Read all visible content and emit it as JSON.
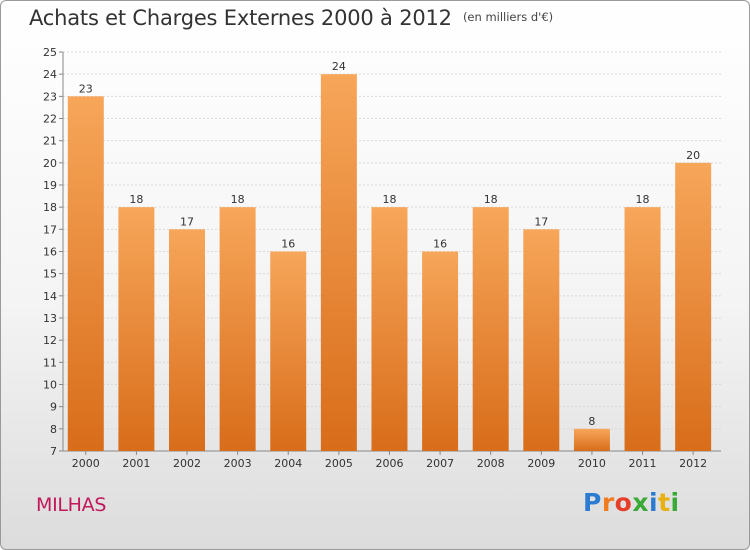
{
  "title": "Achats et Charges Externes 2000 à 2012",
  "unit_label": "(en milliers d'€)",
  "commune": "MILHAS",
  "logo": {
    "letters": [
      "P",
      "r",
      "o",
      "x",
      "i",
      "t",
      "i"
    ],
    "colors": [
      "#2b7bd0",
      "#f07c1f",
      "#e63f29",
      "#3aa935",
      "#2b7bd0",
      "#e8b10f",
      "#3aa935"
    ]
  },
  "colors": {
    "bar_top": "#f7a65a",
    "bar_bottom": "#d86d1a",
    "grid": "#d8d8d8",
    "axis": "#888888",
    "text": "#333333"
  },
  "chart_data": {
    "type": "bar",
    "categories": [
      "2000",
      "2001",
      "2002",
      "2003",
      "2004",
      "2005",
      "2006",
      "2007",
      "2008",
      "2009",
      "2010",
      "2011",
      "2012"
    ],
    "values": [
      23,
      18,
      17,
      18,
      16,
      24,
      18,
      16,
      18,
      17,
      8,
      18,
      20
    ],
    "ylim": [
      7,
      25
    ],
    "yticks": [
      7,
      8,
      9,
      10,
      11,
      12,
      13,
      14,
      15,
      16,
      17,
      18,
      19,
      20,
      21,
      22,
      23,
      24,
      25
    ],
    "grid": true,
    "data_labels": true
  }
}
